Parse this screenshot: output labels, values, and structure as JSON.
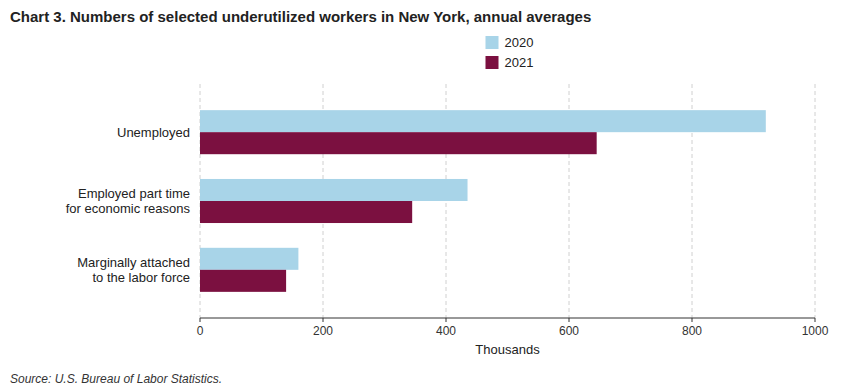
{
  "chart_data": {
    "type": "bar",
    "orientation": "horizontal",
    "title": "Chart 3. Numbers of selected underutilized workers in New York, annual averages",
    "categories": [
      "Marginally attached\nto the labor force",
      "Employed part time\nfor economic reasons",
      "Unemployed"
    ],
    "series": [
      {
        "name": "2020",
        "color": "#a8d4e8",
        "values": [
          160,
          435,
          920
        ]
      },
      {
        "name": "2021",
        "color": "#7b1040",
        "values": [
          140,
          345,
          645
        ]
      }
    ],
    "x_label": "Thousands",
    "xlim": [
      0,
      1000
    ],
    "xticks": [
      0,
      200,
      400,
      600,
      800,
      1000
    ],
    "grid": true,
    "legend": "top",
    "annotations": [
      "Source: U.S. Bureau of Labor Statistics."
    ]
  }
}
